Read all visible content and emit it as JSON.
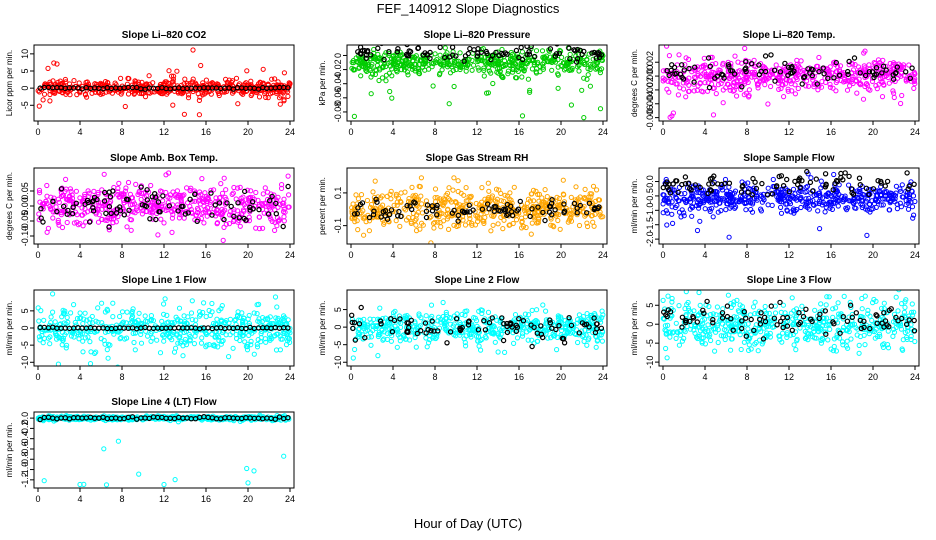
{
  "page": {
    "title": "FEF_140912  Slope Diagnostics",
    "x_axis_title": "Hour of Day (UTC)"
  },
  "colors": {
    "co2": "#ff0000",
    "pressure": "#00cc00",
    "temp": "#ff00ff",
    "box_temp": "#ff00ff",
    "rh": "#ffa500",
    "sample_flow": "#0000ff",
    "line_flow": "#00ffff",
    "reference": "#000000"
  },
  "chart_data": [
    {
      "type": "scatter",
      "title": "Slope Li–820 CO2",
      "ylabel": "Licor ppm per min.",
      "xlim": [
        0,
        24
      ],
      "x_ticks": [
        0,
        4,
        8,
        12,
        16,
        20,
        24
      ],
      "x_tick_labels": [
        "0",
        "4",
        "8",
        "12",
        "16",
        "20",
        "24"
      ],
      "y_ticks": [
        -5,
        0,
        5,
        10
      ],
      "y_tick_labels": [
        "-5",
        "0",
        "5",
        "10"
      ],
      "ylim": [
        -9,
        12
      ],
      "color_key": "co2",
      "spread": 1.2,
      "outlier_range": [
        -8,
        12
      ],
      "ref_spread": 0.15,
      "ref_mode": "line",
      "seed": 11
    },
    {
      "type": "scatter",
      "title": "Slope Li–820 Pressure",
      "ylabel": "kPa per min.",
      "xlim": [
        0,
        24
      ],
      "x_ticks": [
        0,
        4,
        8,
        12,
        16,
        20,
        24
      ],
      "x_tick_labels": [
        "0",
        "4",
        "8",
        "12",
        "16",
        "20",
        "24"
      ],
      "y_ticks": [
        -0.08,
        -0.06,
        -0.04,
        -0.02,
        0
      ],
      "y_tick_labels": [
        "-0.08",
        "-0.06",
        "-0.04",
        "-0.02",
        "0"
      ],
      "ylim": [
        -0.09,
        0.012
      ],
      "color_key": "pressure",
      "spread": 0.008,
      "outlier_range": [
        -0.088,
        0.005
      ],
      "ref_spread": 0.006,
      "ref_mode": "band",
      "ref_center": 0.004,
      "main_center": -0.012,
      "seed": 22
    },
    {
      "type": "scatter",
      "title": "Slope Li–820 Temp.",
      "ylabel": "degrees C per min.",
      "xlim": [
        0,
        24
      ],
      "x_ticks": [
        0,
        4,
        8,
        12,
        16,
        20,
        24
      ],
      "x_tick_labels": [
        "0",
        "4",
        "8",
        "12",
        "16",
        "20",
        "24"
      ],
      "y_ticks": [
        -0.006,
        -0.004,
        -0.002,
        0,
        0.002
      ],
      "y_tick_labels": [
        "-0.006",
        "-0.004",
        "-0.002",
        "0.000",
        "0.002"
      ],
      "ylim": [
        -0.0062,
        0.0042
      ],
      "color_key": "temp",
      "spread": 0.0012,
      "outlier_range": [
        -0.006,
        0.004
      ],
      "ref_spread": 0.0008,
      "ref_mode": "band",
      "ref_center": 0.0006,
      "seed": 33
    },
    {
      "type": "scatter",
      "title": "Slope Amb. Box Temp.",
      "ylabel": "degrees C per min.",
      "xlim": [
        0,
        24
      ],
      "x_ticks": [
        0,
        4,
        8,
        12,
        16,
        20,
        24
      ],
      "x_tick_labels": [
        "0",
        "4",
        "8",
        "12",
        "16",
        "20",
        "24"
      ],
      "y_ticks": [
        -0.1,
        -0.05,
        0,
        0.05
      ],
      "y_tick_labels": [
        "-0.10",
        "-0.05",
        "0.00",
        "0.05"
      ],
      "ylim": [
        -0.12,
        0.12
      ],
      "color_key": "box_temp",
      "spread": 0.035,
      "outlier_range": [
        -0.12,
        0.11
      ],
      "ref_spread": 0.03,
      "ref_mode": "band",
      "seed": 44
    },
    {
      "type": "scatter",
      "title": "Slope Gas Stream RH",
      "ylabel": "percent per min.",
      "xlim": [
        0,
        24
      ],
      "x_ticks": [
        0,
        4,
        8,
        12,
        16,
        20,
        24
      ],
      "x_tick_labels": [
        "0",
        "4",
        "8",
        "12",
        "16",
        "20",
        "24"
      ],
      "y_ticks": [
        -0.1,
        0.1
      ],
      "y_tick_labels": [
        "-0.1",
        "0.1"
      ],
      "ylim": [
        -0.2,
        0.24
      ],
      "color_key": "rh",
      "spread": 0.06,
      "outlier_range": [
        -0.19,
        0.23
      ],
      "ref_spread": 0.03,
      "ref_mode": "band",
      "seed": 55
    },
    {
      "type": "scatter",
      "title": "Slope Sample Flow",
      "ylabel": "ml/min per min.",
      "xlim": [
        0,
        24
      ],
      "x_ticks": [
        0,
        4,
        8,
        12,
        16,
        20,
        24
      ],
      "x_tick_labels": [
        "0",
        "4",
        "8",
        "12",
        "16",
        "20",
        "24"
      ],
      "y_ticks": [
        -2,
        -1.5,
        -1,
        -0.5,
        0
      ],
      "y_tick_labels": [
        "-2.0",
        "-1.5",
        "-1.0",
        "-0.5",
        "0.0"
      ],
      "ylim": [
        -2.1,
        0.4
      ],
      "color_key": "sample_flow",
      "spread": 0.25,
      "outlier_range": [
        -2,
        0.3
      ],
      "ref_spread": 0.2,
      "ref_mode": "band",
      "ref_center": -0.1,
      "main_center": -0.6,
      "seed": 66
    },
    {
      "type": "scatter",
      "title": "Slope Line 1 Flow",
      "ylabel": "ml/min per min.",
      "xlim": [
        0,
        24
      ],
      "x_ticks": [
        0,
        4,
        8,
        12,
        16,
        20,
        24
      ],
      "x_tick_labels": [
        "0",
        "4",
        "8",
        "12",
        "16",
        "20",
        "24"
      ],
      "y_ticks": [
        -10,
        -5,
        0,
        5
      ],
      "y_tick_labels": [
        "-10",
        "-5",
        "0",
        "5"
      ],
      "ylim": [
        -10.5,
        10.5
      ],
      "color_key": "line_flow",
      "spread": 3,
      "outlier_range": [
        -10,
        10
      ],
      "ref_spread": 0.1,
      "ref_mode": "line",
      "seed": 77
    },
    {
      "type": "scatter",
      "title": "Slope Line 2 Flow",
      "ylabel": "ml/min per min.",
      "xlim": [
        0,
        24
      ],
      "x_ticks": [
        0,
        4,
        8,
        12,
        16,
        20,
        24
      ],
      "x_tick_labels": [
        "0",
        "4",
        "8",
        "12",
        "16",
        "20",
        "24"
      ],
      "y_ticks": [
        -10,
        -5,
        0,
        5
      ],
      "y_tick_labels": [
        "-10",
        "-5",
        "0",
        "5"
      ],
      "ylim": [
        -10.5,
        10
      ],
      "color_key": "line_flow",
      "spread": 2.2,
      "outlier_range": [
        -10,
        8
      ],
      "ref_spread": 2.2,
      "ref_mode": "band",
      "seed": 88
    },
    {
      "type": "scatter",
      "title": "Slope Line 3 Flow",
      "ylabel": "ml/min per min.",
      "xlim": [
        0,
        24
      ],
      "x_ticks": [
        0,
        4,
        8,
        12,
        16,
        20,
        24
      ],
      "x_tick_labels": [
        "0",
        "4",
        "8",
        "12",
        "16",
        "20",
        "24"
      ],
      "y_ticks": [
        -10,
        -5,
        0,
        5
      ],
      "y_tick_labels": [
        "-10",
        "-5",
        "0",
        "5"
      ],
      "ylim": [
        -10.5,
        8.5
      ],
      "color_key": "line_flow",
      "spread": 3,
      "outlier_range": [
        -10,
        8
      ],
      "ref_spread": 2,
      "ref_mode": "band",
      "ref_center": 1,
      "seed": 99
    },
    {
      "type": "scatter",
      "title": "Slope Line 4 (LT) Flow",
      "ylabel": "ml/min per min.",
      "xlim": [
        0,
        24
      ],
      "x_ticks": [
        0,
        4,
        8,
        12,
        16,
        20,
        24
      ],
      "x_tick_labels": [
        "0",
        "4",
        "8",
        "12",
        "16",
        "20",
        "24"
      ],
      "y_ticks": [
        -1.2,
        -1,
        -0.8,
        -0.6,
        -0.4,
        -0.2,
        0
      ],
      "y_tick_labels": [
        "-1.2",
        "-1.0",
        "-0.8",
        "-0.6",
        "-0.4",
        "-0.2",
        "0.0"
      ],
      "ylim": [
        -1.32,
        0.08
      ],
      "color_key": "line_flow",
      "spread": 0.02,
      "outlier_range": [
        -1.3,
        0.05
      ],
      "ref_spread": 0.015,
      "ref_mode": "line",
      "outlier_points": [
        [
          4,
          -1.29
        ],
        [
          12,
          -1.29
        ],
        [
          20,
          -1.26
        ]
      ],
      "seed": 111
    }
  ]
}
